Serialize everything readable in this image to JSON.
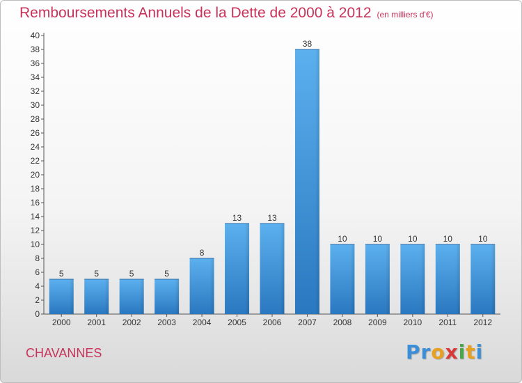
{
  "chart_data": {
    "type": "bar",
    "title": "Remboursements Annuels de la Dette de 2000 à 2012",
    "unit": "(en milliers d'€)",
    "categories": [
      "2000",
      "2001",
      "2002",
      "2003",
      "2004",
      "2005",
      "2006",
      "2007",
      "2008",
      "2009",
      "2010",
      "2011",
      "2012"
    ],
    "values": [
      5,
      5,
      5,
      5,
      8,
      13,
      13,
      38,
      10,
      10,
      10,
      10,
      10
    ],
    "ylim": [
      0,
      40
    ],
    "ytick_step": 2,
    "grid": false,
    "bar_color": "#4a9fe0"
  },
  "commune": "CHAVANNES",
  "logo": {
    "letters": [
      {
        "char": "P",
        "color": "#3a8fd8"
      },
      {
        "char": "r",
        "color": "#3a8fd8"
      },
      {
        "char": "o",
        "color": "#e8a020"
      },
      {
        "char": "x",
        "color": "#d83a3a"
      },
      {
        "char": "i",
        "color": "#4aa84a"
      },
      {
        "char": "t",
        "color": "#e8a020"
      },
      {
        "char": "i",
        "color": "#3a8fd8"
      }
    ]
  }
}
